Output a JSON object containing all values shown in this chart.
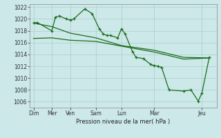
{
  "background_color": "#cce8e8",
  "grid_color": "#aacece",
  "line_color": "#1a6b1a",
  "xlabel": "Pression niveau de la mer( hPa )",
  "ylim": [
    1005.0,
    1022.5
  ],
  "yticks": [
    1006,
    1008,
    1010,
    1012,
    1014,
    1016,
    1018,
    1020,
    1022
  ],
  "xlim": [
    0,
    25.5
  ],
  "xtick_positions": [
    0.5,
    3,
    5.5,
    9,
    12.5,
    17,
    23.5
  ],
  "xtick_labels": [
    "Dim",
    "Mer",
    "Ven",
    "Sam",
    "Lun",
    "Mar",
    "Jeu"
  ],
  "line1_x": [
    0.5,
    1.0,
    3.0,
    3.5,
    4.0,
    5.0,
    5.5,
    6.0,
    7.5,
    8.5,
    9.5,
    10.0,
    10.5,
    11.0,
    12.0,
    12.5,
    13.0,
    14.0,
    14.5,
    15.5,
    16.5,
    17.0,
    17.5,
    18.0,
    19.0,
    21.0,
    22.0,
    23.0,
    23.5,
    24.5
  ],
  "line1_y": [
    1019.3,
    1019.4,
    1018.0,
    1020.3,
    1020.5,
    1020.0,
    1019.8,
    1020.0,
    1021.7,
    1020.9,
    1018.3,
    1017.5,
    1017.2,
    1017.2,
    1016.8,
    1018.3,
    1017.5,
    1014.5,
    1013.5,
    1013.3,
    1012.3,
    1012.1,
    1012.0,
    1011.8,
    1008.0,
    1007.8,
    1008.0,
    1006.1,
    1007.5,
    1013.5
  ],
  "line2_x": [
    0.5,
    3.0,
    5.5,
    9.0,
    12.5,
    17.0,
    21.0,
    24.5
  ],
  "line2_y": [
    1016.7,
    1016.8,
    1016.4,
    1016.2,
    1015.4,
    1014.4,
    1013.2,
    1013.4
  ],
  "line3_x": [
    0.5,
    3.0,
    5.5,
    9.0,
    12.5,
    17.0,
    21.0,
    24.5
  ],
  "line3_y": [
    1019.3,
    1018.7,
    1017.6,
    1016.8,
    1015.5,
    1014.7,
    1013.5,
    1013.4
  ]
}
